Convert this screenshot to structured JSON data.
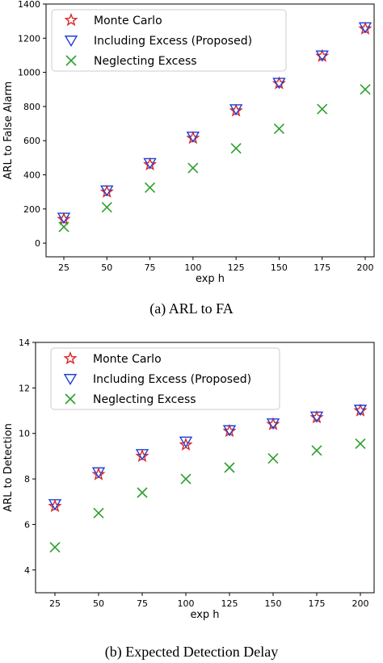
{
  "chart_data": [
    {
      "type": "scatter",
      "caption": "(a)  ARL to FA",
      "xlabel": "exp h",
      "ylabel": "ARL to False Alarm",
      "x": [
        25,
        50,
        75,
        100,
        125,
        150,
        175,
        200
      ],
      "xticks": [
        "25",
        "50",
        "75",
        "100",
        "125",
        "150",
        "175",
        "200"
      ],
      "ylim": [
        -80,
        1400
      ],
      "yticks": [
        "0",
        "200",
        "400",
        "600",
        "800",
        "1000",
        "1200",
        "1400"
      ],
      "ytick_values": [
        0,
        200,
        400,
        600,
        800,
        1000,
        1200,
        1400
      ],
      "legend_position": "top-left",
      "series": [
        {
          "name": "Monte Carlo",
          "marker": "star",
          "color": "#d62728",
          "values": [
            140,
            300,
            460,
            615,
            775,
            935,
            1095,
            1255
          ]
        },
        {
          "name": "Including Excess (Proposed)",
          "marker": "triangle-down",
          "color": "#1f3fd6",
          "values": [
            150,
            310,
            470,
            625,
            785,
            940,
            1100,
            1265
          ]
        },
        {
          "name": "Neglecting Excess",
          "marker": "x",
          "color": "#2ca02c",
          "values": [
            95,
            210,
            325,
            440,
            555,
            670,
            785,
            900
          ]
        }
      ]
    },
    {
      "type": "scatter",
      "caption": "(b)  Expected Detection Delay",
      "xlabel": "exp h",
      "ylabel": "ARL to Detection",
      "x": [
        25,
        50,
        75,
        100,
        125,
        150,
        175,
        200
      ],
      "xticks": [
        "25",
        "50",
        "75",
        "100",
        "125",
        "150",
        "175",
        "200"
      ],
      "ylim": [
        3,
        14
      ],
      "yticks": [
        "4",
        "6",
        "8",
        "10",
        "12",
        "14"
      ],
      "ytick_values": [
        4,
        6,
        8,
        10,
        12,
        14
      ],
      "legend_position": "top-left",
      "series": [
        {
          "name": "Monte Carlo",
          "marker": "star",
          "color": "#d62728",
          "values": [
            6.8,
            8.2,
            9.0,
            9.5,
            10.1,
            10.4,
            10.7,
            11.0
          ]
        },
        {
          "name": "Including Excess (Proposed)",
          "marker": "triangle-down",
          "color": "#1f3fd6",
          "values": [
            6.9,
            8.3,
            9.1,
            9.65,
            10.15,
            10.45,
            10.75,
            11.05
          ]
        },
        {
          "name": "Neglecting Excess",
          "marker": "x",
          "color": "#2ca02c",
          "values": [
            5.0,
            6.5,
            7.4,
            8.0,
            8.5,
            8.9,
            9.25,
            9.55
          ]
        }
      ]
    }
  ]
}
